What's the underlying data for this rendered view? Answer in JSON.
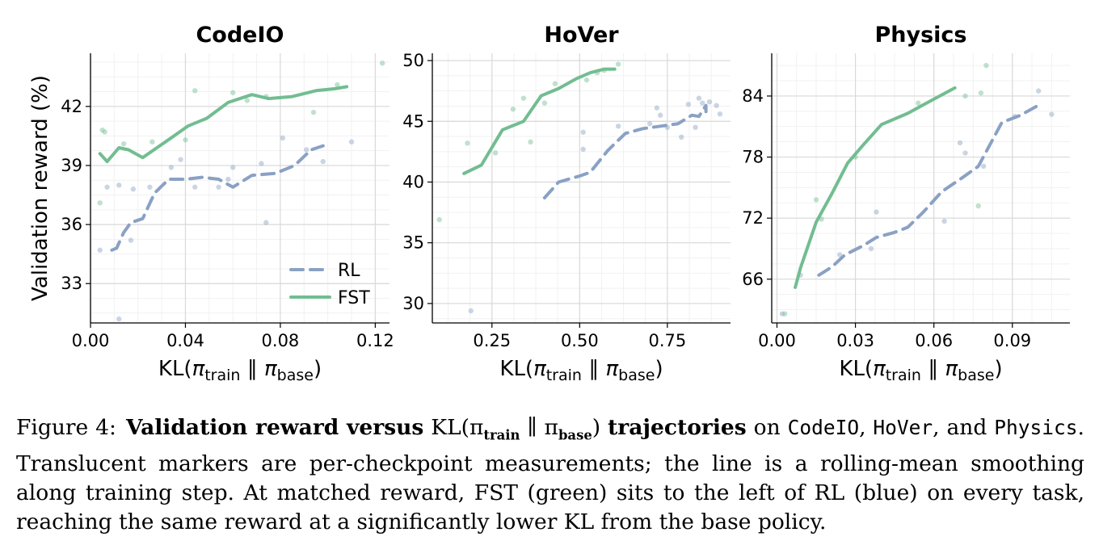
{
  "chart_data": [
    {
      "type": "line",
      "title": "CodeIO",
      "xlabel": "KL(π_train ∥ π_base)",
      "ylabel": "Validation reward (%)",
      "xlim": [
        0.0,
        0.126
      ],
      "ylim": [
        31.0,
        44.7
      ],
      "xticks": [
        0.0,
        0.04,
        0.08,
        0.12
      ],
      "xtick_labels": [
        "0.00",
        "0.04",
        "0.08",
        "0.12"
      ],
      "yticks": [
        33,
        36,
        39,
        42
      ],
      "ytick_labels": [
        "33",
        "36",
        "39",
        "42"
      ],
      "grid": true,
      "legend": {
        "placement": "bottom-right",
        "entries": [
          "RL",
          "FST"
        ]
      },
      "series": [
        {
          "name": "RL",
          "color": "#8aa1c4",
          "dash": true,
          "line": [
            [
              0.009,
              34.7
            ],
            [
              0.011,
              34.8
            ],
            [
              0.014,
              35.6
            ],
            [
              0.017,
              36.1
            ],
            [
              0.022,
              36.3
            ],
            [
              0.027,
              37.6
            ],
            [
              0.033,
              38.3
            ],
            [
              0.04,
              38.3
            ],
            [
              0.047,
              38.4
            ],
            [
              0.054,
              38.3
            ],
            [
              0.06,
              37.9
            ],
            [
              0.068,
              38.5
            ],
            [
              0.078,
              38.6
            ],
            [
              0.086,
              39.0
            ],
            [
              0.093,
              39.8
            ],
            [
              0.098,
              40.0
            ]
          ],
          "points": [
            [
              0.004,
              34.7
            ],
            [
              0.012,
              31.2
            ],
            [
              0.007,
              37.9
            ],
            [
              0.012,
              38.0
            ],
            [
              0.018,
              37.8
            ],
            [
              0.017,
              35.2
            ],
            [
              0.025,
              37.9
            ],
            [
              0.034,
              38.9
            ],
            [
              0.038,
              39.3
            ],
            [
              0.044,
              37.9
            ],
            [
              0.054,
              37.9
            ],
            [
              0.058,
              38.3
            ],
            [
              0.06,
              38.9
            ],
            [
              0.072,
              39.1
            ],
            [
              0.074,
              36.1
            ],
            [
              0.081,
              40.4
            ],
            [
              0.091,
              39.8
            ],
            [
              0.098,
              39.2
            ],
            [
              0.11,
              40.2
            ]
          ]
        },
        {
          "name": "FST",
          "color": "#72bd91",
          "dash": false,
          "line": [
            [
              0.004,
              39.6
            ],
            [
              0.007,
              39.2
            ],
            [
              0.012,
              39.9
            ],
            [
              0.016,
              39.8
            ],
            [
              0.022,
              39.4
            ],
            [
              0.028,
              39.9
            ],
            [
              0.034,
              40.4
            ],
            [
              0.041,
              41.0
            ],
            [
              0.049,
              41.4
            ],
            [
              0.058,
              42.2
            ],
            [
              0.068,
              42.6
            ],
            [
              0.075,
              42.4
            ],
            [
              0.085,
              42.5
            ],
            [
              0.095,
              42.8
            ],
            [
              0.103,
              42.9
            ],
            [
              0.108,
              43.0
            ]
          ],
          "points": [
            [
              0.004,
              37.1
            ],
            [
              0.005,
              40.8
            ],
            [
              0.006,
              40.7
            ],
            [
              0.014,
              40.1
            ],
            [
              0.026,
              40.2
            ],
            [
              0.04,
              40.3
            ],
            [
              0.044,
              42.8
            ],
            [
              0.06,
              42.7
            ],
            [
              0.066,
              42.3
            ],
            [
              0.074,
              42.5
            ],
            [
              0.094,
              41.7
            ],
            [
              0.104,
              43.1
            ],
            [
              0.123,
              44.2
            ]
          ]
        }
      ]
    },
    {
      "type": "line",
      "title": "HoVer",
      "xlabel": "KL(π_train ∥ π_base)",
      "ylabel": "",
      "xlim": [
        0.08,
        0.93
      ],
      "ylim": [
        28.4,
        50.6
      ],
      "xticks": [
        0.25,
        0.5,
        0.75
      ],
      "xtick_labels": [
        "0.25",
        "0.50",
        "0.75"
      ],
      "yticks": [
        30,
        35,
        40,
        45,
        50
      ],
      "ytick_labels": [
        "30",
        "35",
        "40",
        "45",
        "50"
      ],
      "grid": true,
      "series": [
        {
          "name": "RL",
          "color": "#8aa1c4",
          "dash": true,
          "line": [
            [
              0.4,
              38.7
            ],
            [
              0.44,
              40.0
            ],
            [
              0.5,
              40.5
            ],
            [
              0.53,
              40.8
            ],
            [
              0.58,
              42.6
            ],
            [
              0.63,
              44.0
            ],
            [
              0.68,
              44.4
            ],
            [
              0.73,
              44.6
            ],
            [
              0.78,
              44.8
            ],
            [
              0.82,
              45.5
            ],
            [
              0.84,
              45.4
            ],
            [
              0.86,
              46.3
            ],
            [
              0.86,
              45.8
            ]
          ],
          "points": [
            [
              0.19,
              29.4
            ],
            [
              0.51,
              42.7
            ],
            [
              0.51,
              44.1
            ],
            [
              0.61,
              44.6
            ],
            [
              0.7,
              44.8
            ],
            [
              0.72,
              46.1
            ],
            [
              0.73,
              45.5
            ],
            [
              0.75,
              44.5
            ],
            [
              0.79,
              43.7
            ],
            [
              0.81,
              46.4
            ],
            [
              0.83,
              44.5
            ],
            [
              0.84,
              46.9
            ],
            [
              0.85,
              46.5
            ],
            [
              0.87,
              46.6
            ],
            [
              0.89,
              46.3
            ],
            [
              0.9,
              45.6
            ]
          ]
        },
        {
          "name": "FST",
          "color": "#72bd91",
          "dash": false,
          "line": [
            [
              0.17,
              40.7
            ],
            [
              0.22,
              41.4
            ],
            [
              0.28,
              44.3
            ],
            [
              0.34,
              45.0
            ],
            [
              0.39,
              47.1
            ],
            [
              0.44,
              47.7
            ],
            [
              0.49,
              48.5
            ],
            [
              0.53,
              49.0
            ],
            [
              0.57,
              49.3
            ],
            [
              0.6,
              49.3
            ]
          ],
          "points": [
            [
              0.1,
              36.9
            ],
            [
              0.18,
              43.2
            ],
            [
              0.26,
              42.4
            ],
            [
              0.31,
              46.0
            ],
            [
              0.34,
              46.9
            ],
            [
              0.36,
              43.3
            ],
            [
              0.4,
              46.5
            ],
            [
              0.43,
              48.1
            ],
            [
              0.52,
              48.4
            ],
            [
              0.55,
              49.0
            ],
            [
              0.57,
              49.2
            ],
            [
              0.61,
              49.7
            ]
          ]
        }
      ]
    },
    {
      "type": "line",
      "title": "Physics",
      "xlabel": "KL(π_train ∥ π_base)",
      "ylabel": "",
      "xlim": [
        -0.002,
        0.112
      ],
      "ylim": [
        61.7,
        88.2
      ],
      "xticks": [
        0.0,
        0.03,
        0.06,
        0.09
      ],
      "xtick_labels": [
        "0.00",
        "0.03",
        "0.06",
        "0.09"
      ],
      "yticks": [
        66,
        72,
        78,
        84
      ],
      "ytick_labels": [
        "66",
        "72",
        "78",
        "84"
      ],
      "grid": true,
      "series": [
        {
          "name": "RL",
          "color": "#8aa1c4",
          "dash": true,
          "line": [
            [
              0.016,
              66.4
            ],
            [
              0.021,
              67.2
            ],
            [
              0.026,
              68.4
            ],
            [
              0.033,
              69.3
            ],
            [
              0.038,
              70.1
            ],
            [
              0.045,
              70.6
            ],
            [
              0.05,
              71.1
            ],
            [
              0.056,
              72.6
            ],
            [
              0.063,
              74.6
            ],
            [
              0.071,
              76.0
            ],
            [
              0.077,
              77.1
            ],
            [
              0.086,
              81.4
            ],
            [
              0.093,
              82.1
            ],
            [
              0.1,
              83.1
            ]
          ],
          "points": [
            [
              0.002,
              62.6
            ],
            [
              0.009,
              66.4
            ],
            [
              0.024,
              68.4
            ],
            [
              0.036,
              69.0
            ],
            [
              0.038,
              72.6
            ],
            [
              0.064,
              71.7
            ],
            [
              0.07,
              79.4
            ],
            [
              0.072,
              78.4
            ],
            [
              0.079,
              77.1
            ],
            [
              0.091,
              82.0
            ],
            [
              0.1,
              84.5
            ],
            [
              0.105,
              82.2
            ]
          ]
        },
        {
          "name": "FST",
          "color": "#72bd91",
          "dash": false,
          "line": [
            [
              0.007,
              65.2
            ],
            [
              0.009,
              67.1
            ],
            [
              0.015,
              71.6
            ],
            [
              0.021,
              74.4
            ],
            [
              0.027,
              77.4
            ],
            [
              0.033,
              79.2
            ],
            [
              0.04,
              81.2
            ],
            [
              0.05,
              82.3
            ],
            [
              0.06,
              83.7
            ],
            [
              0.068,
              84.8
            ]
          ],
          "points": [
            [
              0.003,
              62.6
            ],
            [
              0.015,
              73.8
            ],
            [
              0.017,
              71.9
            ],
            [
              0.03,
              78.0
            ],
            [
              0.054,
              83.3
            ],
            [
              0.072,
              84.0
            ],
            [
              0.077,
              73.2
            ],
            [
              0.078,
              84.3
            ],
            [
              0.08,
              87.0
            ]
          ]
        }
      ]
    }
  ],
  "caption": {
    "lead": "Figure 4:",
    "bold_text": "Validation reward versus",
    "kl_math": "KL(π",
    "kl_sub_train": "train",
    "kl_mid": " ∥ π",
    "kl_sub_base": "base",
    "kl_close": ")",
    "bold_text2": "trajectories",
    "text_on": " on ",
    "task1": "CodeIO",
    "sep1": ", ",
    "task2": "HoVer",
    "sep2": ", and ",
    "task3": "Physics",
    "body": ". Translucent markers are per-checkpoint measurements; the line is a rolling-mean smoothing along training step. At matched reward, FST (green) sits to the left of RL (blue) on every task, reaching the same reward at a significantly lower KL from the base policy."
  }
}
